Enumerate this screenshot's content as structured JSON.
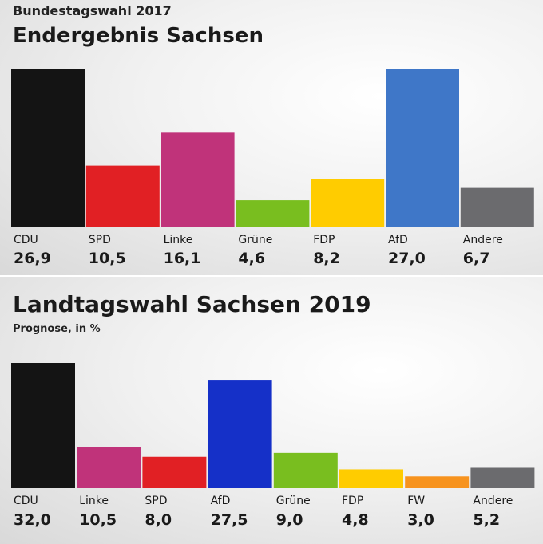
{
  "chart_data": [
    {
      "type": "bar",
      "supertitle": "Bundestagswahl 2017",
      "title": "Endergebnis Sachsen",
      "categories": [
        "CDU",
        "SPD",
        "Linke",
        "Grüne",
        "FDP",
        "AfD",
        "Andere"
      ],
      "value_labels": [
        "26,9",
        "10,5",
        "16,1",
        "4,6",
        "8,2",
        "27,0",
        "6,7"
      ],
      "values": [
        26.9,
        10.5,
        16.1,
        4.6,
        8.2,
        27.0,
        6.7
      ],
      "colors": [
        "#141414",
        "#e12024",
        "#c0337a",
        "#79be1f",
        "#ffcc00",
        "#3f77c8",
        "#6b6b6e"
      ],
      "ylim": [
        0,
        27.0
      ]
    },
    {
      "type": "bar",
      "title": "Landtagswahl Sachsen 2019",
      "subtitle": "Prognose, in %",
      "categories": [
        "CDU",
        "Linke",
        "SPD",
        "AfD",
        "Grüne",
        "FDP",
        "FW",
        "Andere"
      ],
      "value_labels": [
        "32,0",
        "10,5",
        "8,0",
        "27,5",
        "9,0",
        "4,8",
        "3,0",
        "5,2"
      ],
      "values": [
        32.0,
        10.5,
        8.0,
        27.5,
        9.0,
        4.8,
        3.0,
        5.2
      ],
      "colors": [
        "#141414",
        "#c0337a",
        "#e12024",
        "#1530c8",
        "#79be1f",
        "#ffcc00",
        "#f7931e",
        "#6b6b6e"
      ],
      "ylim": [
        0,
        32.0
      ]
    }
  ]
}
